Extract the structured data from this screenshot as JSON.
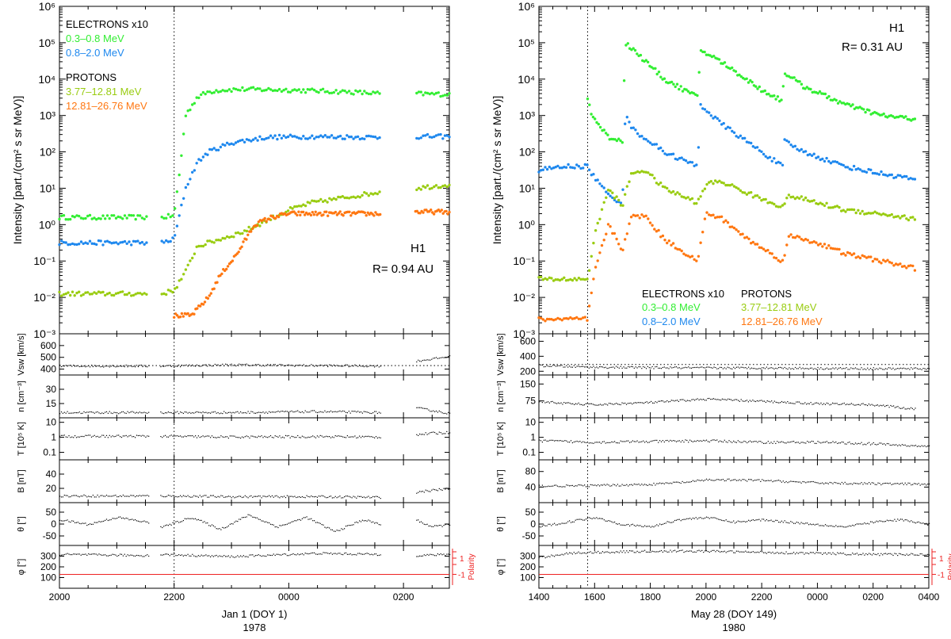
{
  "colors": {
    "e_low": "#33ee33",
    "e_high": "#1e88ee",
    "p_low": "#99cc11",
    "p_high": "#ff7711",
    "polarity": "#ee2222",
    "ink": "#000000"
  },
  "chart_data": [
    {
      "type": "scatter",
      "title": "",
      "spacecraft": "H1",
      "distance": "R= 0.94 AU",
      "xlabel": "Jan 1 (DOY 1)",
      "year": "1978",
      "x_ticks": [
        "2000",
        "2200",
        "0000",
        "0200"
      ],
      "x_range_hours": [
        0,
        6.8
      ],
      "event_hour": 2.0,
      "data_gaps": [
        [
          1.55,
          1.75
        ],
        [
          5.6,
          6.2
        ]
      ],
      "ylabel": "Intensity [part./(cm² s sr MeV)]",
      "y_ticks": [
        "10⁶",
        "10⁵",
        "10⁴",
        "10³",
        "10²",
        "10¹",
        "10⁰",
        "10⁻¹",
        "10⁻²",
        "10⁻³"
      ],
      "ylim_log10": [
        -3,
        6
      ],
      "legend": {
        "electrons_header": "ELECTRONS x10",
        "protons_header": "PROTONS",
        "placement": "top-left"
      },
      "series": [
        {
          "name": "0.3–0.8 MeV",
          "color_key": "e_low",
          "x": [
            0,
            1.5,
            1.8,
            2.0,
            2.1,
            2.2,
            2.4,
            2.6,
            2.8,
            3.2,
            4.0,
            5.0,
            5.6,
            6.2,
            6.8
          ],
          "y_log": [
            0.2,
            0.2,
            0.2,
            0.25,
            1.5,
            3.0,
            3.5,
            3.65,
            3.7,
            3.72,
            3.7,
            3.65,
            3.6,
            3.6,
            3.58
          ]
        },
        {
          "name": "0.8–2.0 MeV",
          "color_key": "e_high",
          "x": [
            0,
            1.5,
            1.8,
            2.0,
            2.1,
            2.2,
            2.4,
            2.6,
            3.0,
            3.6,
            4.4,
            5.6,
            6.2,
            6.8
          ],
          "y_log": [
            -0.5,
            -0.5,
            -0.5,
            -0.4,
            0.3,
            1.0,
            1.7,
            2.0,
            2.25,
            2.4,
            2.42,
            2.4,
            2.42,
            2.42
          ]
        },
        {
          "name": "3.77–12.81 MeV",
          "color_key": "p_low",
          "x": [
            0,
            1.5,
            1.8,
            2.0,
            2.2,
            2.4,
            2.8,
            3.2,
            3.6,
            4.0,
            4.4,
            5.0,
            5.6,
            6.2,
            6.8
          ],
          "y_log": [
            -1.9,
            -1.9,
            -1.9,
            -1.8,
            -1.3,
            -0.6,
            -0.4,
            -0.2,
            0.1,
            0.4,
            0.6,
            0.75,
            0.9,
            1.0,
            1.1
          ]
        },
        {
          "name": "12.81–26.76 MeV",
          "color_key": "p_high",
          "x": [
            2.0,
            2.3,
            2.6,
            2.8,
            3.1,
            3.4,
            3.7,
            4.0,
            4.4,
            5.0,
            5.6,
            6.2,
            6.8
          ],
          "y_log": [
            -2.5,
            -2.5,
            -2.0,
            -1.4,
            -0.8,
            0.0,
            0.2,
            0.3,
            0.3,
            0.3,
            0.3,
            0.35,
            0.35
          ]
        }
      ],
      "panels": [
        {
          "label": "Vsw [km/s]",
          "ticks": [
            "400",
            "500",
            "600"
          ],
          "range": [
            350,
            700
          ],
          "x": [
            0,
            1.5,
            1.8,
            3.0,
            4.2,
            5.6,
            6.2,
            6.5,
            6.8
          ],
          "y": [
            430,
            430,
            430,
            440,
            435,
            430,
            470,
            490,
            510
          ],
          "ref": 430
        },
        {
          "label": "n [cm⁻³]",
          "ticks": [
            "15",
            "30"
          ],
          "range": [
            0,
            45
          ],
          "x": [
            0,
            1.5,
            1.8,
            3.0,
            4.5,
            5.6,
            6.2,
            6.5,
            6.8
          ],
          "y": [
            6,
            6,
            6,
            6,
            7,
            6,
            11,
            8,
            5
          ]
        },
        {
          "label": "T [10⁵ K]",
          "ticks": [
            "0.1",
            "1",
            "10"
          ],
          "range_log": [
            -1.5,
            1.3
          ],
          "x": [
            0,
            1.5,
            1.8,
            3.0,
            4.5,
            5.6,
            6.2,
            6.5,
            6.8
          ],
          "y_log": [
            0.1,
            0.1,
            0.1,
            0.05,
            0.08,
            0.05,
            0.2,
            0.3,
            0.35
          ]
        },
        {
          "label": "B [nT]",
          "ticks": [
            "20",
            "40"
          ],
          "range": [
            0,
            60
          ],
          "x": [
            0,
            1.5,
            1.8,
            3.0,
            4.5,
            5.6,
            6.2,
            6.5,
            6.8
          ],
          "y": [
            10,
            10,
            10,
            9,
            9,
            8,
            15,
            18,
            20
          ]
        },
        {
          "label": "θ [°]",
          "ticks": [
            "-50",
            "0",
            "50"
          ],
          "range": [
            -90,
            90
          ],
          "x": [
            0,
            0.5,
            1.0,
            1.5,
            1.8,
            2.3,
            2.8,
            3.3,
            3.8,
            4.3,
            4.8,
            5.3,
            5.6,
            6.2,
            6.5,
            6.8
          ],
          "y": [
            20,
            0,
            30,
            10,
            -10,
            30,
            -20,
            40,
            -10,
            30,
            -30,
            20,
            0,
            20,
            -10,
            0
          ]
        },
        {
          "label": "φ [°]",
          "ticks": [
            "100",
            "200",
            "300"
          ],
          "range": [
            0,
            400
          ],
          "x": [
            0,
            1.5,
            1.8,
            3.0,
            4.5,
            5.6,
            6.2,
            6.8
          ],
          "y": [
            320,
            310,
            320,
            300,
            330,
            320,
            310,
            320
          ],
          "polarity_value": 130,
          "polarity_label": "Polarity",
          "polarity_ticks": [
            "1",
            "-1"
          ]
        }
      ]
    },
    {
      "type": "scatter",
      "title": "",
      "spacecraft": "H1",
      "distance": "R= 0.31 AU",
      "xlabel": "May 28 (DOY 149)",
      "year": "1980",
      "x_ticks": [
        "1400",
        "1600",
        "1800",
        "2000",
        "2200",
        "0000",
        "0200",
        "0400"
      ],
      "x_range_hours": [
        0,
        14
      ],
      "event_hour": 1.75,
      "data_gaps": [],
      "ylabel": "Intensity [part./(cm² s sr MeV)]",
      "y_ticks": [
        "10⁶",
        "10⁵",
        "10⁴",
        "10³",
        "10²",
        "10¹",
        "10⁰",
        "10⁻¹",
        "10⁻²",
        "10⁻³"
      ],
      "ylim_log10": [
        -3,
        6
      ],
      "legend": {
        "electrons_header": "ELECTRONS x10",
        "protons_header": "PROTONS",
        "placement": "bottom-right"
      },
      "series": [
        {
          "name": "0.3–0.8 MeV",
          "color_key": "e_low",
          "x": [
            1.75,
            1.9,
            2.5,
            3.0,
            3.1,
            3.4,
            4.5,
            5.7,
            5.8,
            6.5,
            8.0,
            8.75,
            8.8,
            9.5,
            11.0,
            12.3,
            13.5
          ],
          "y_log": [
            3.5,
            3.0,
            2.4,
            2.3,
            5.0,
            4.8,
            4.0,
            3.5,
            4.8,
            4.5,
            3.7,
            3.4,
            4.2,
            3.8,
            3.3,
            3.0,
            2.9
          ]
        },
        {
          "name": "0.8–2.0 MeV",
          "color_key": "e_high",
          "x": [
            0,
            1.0,
            1.75,
            1.9,
            2.5,
            3.0,
            3.1,
            3.4,
            4.5,
            5.7,
            5.8,
            6.5,
            8.0,
            8.75,
            8.8,
            9.5,
            11.0,
            12.3,
            13.5
          ],
          "y_log": [
            1.5,
            1.6,
            1.6,
            1.4,
            0.8,
            0.6,
            3.0,
            2.6,
            2.0,
            1.6,
            3.3,
            2.8,
            2.0,
            1.6,
            2.3,
            2.0,
            1.6,
            1.4,
            1.25
          ]
        },
        {
          "name": "3.77–12.81 MeV",
          "color_key": "p_low",
          "x": [
            0,
            1.0,
            1.75,
            2.0,
            2.5,
            3.0,
            3.3,
            3.8,
            4.5,
            5.7,
            6.0,
            6.5,
            8.0,
            8.75,
            9.0,
            10.0,
            11.0,
            12.3,
            13.5
          ],
          "y_log": [
            -1.5,
            -1.5,
            -1.5,
            -0.3,
            1.0,
            0.5,
            1.4,
            1.5,
            1.0,
            0.6,
            1.1,
            1.2,
            0.7,
            0.5,
            0.8,
            0.6,
            0.4,
            0.3,
            0.15
          ]
        },
        {
          "name": "12.81–26.76 MeV",
          "color_key": "p_high",
          "x": [
            0,
            1.0,
            1.75,
            2.0,
            2.5,
            3.0,
            3.3,
            3.8,
            4.5,
            5.7,
            6.0,
            6.5,
            7.5,
            8.75,
            9.0,
            10.0,
            11.0,
            12.3,
            13.5
          ],
          "y_log": [
            -2.6,
            -2.6,
            -2.6,
            -1.3,
            0.0,
            -0.7,
            0.2,
            0.25,
            -0.4,
            -1.0,
            0.3,
            0.2,
            -0.4,
            -1.0,
            -0.3,
            -0.5,
            -0.8,
            -1.0,
            -1.2
          ]
        }
      ],
      "panels": [
        {
          "label": "Vsw [km/s]",
          "ticks": [
            "200",
            "400",
            "600"
          ],
          "range": [
            150,
            700
          ],
          "x": [
            0,
            1.0,
            2.0,
            4.0,
            6.0,
            8.0,
            10.0,
            12.0,
            14.0
          ],
          "y": [
            280,
            270,
            260,
            255,
            250,
            250,
            245,
            240,
            240
          ],
          "ref": 290
        },
        {
          "label": "n [cm⁻³]",
          "ticks": [
            "75",
            "150"
          ],
          "range": [
            0,
            190
          ],
          "x": [
            0,
            1.0,
            2.0,
            4.0,
            6.0,
            8.0,
            10.0,
            12.0,
            13.5
          ],
          "y": [
            75,
            65,
            60,
            70,
            85,
            75,
            65,
            60,
            40
          ]
        },
        {
          "label": "T [10⁵ K]",
          "ticks": [
            "0.1",
            "1",
            "10"
          ],
          "range_log": [
            -1.5,
            1.3
          ],
          "x": [
            0,
            1.0,
            2.0,
            4.0,
            6.0,
            8.0,
            10.0,
            12.0,
            14.0
          ],
          "y_log": [
            -0.2,
            -0.25,
            -0.3,
            -0.25,
            -0.2,
            -0.3,
            -0.3,
            -0.4,
            -0.6
          ]
        },
        {
          "label": "B [nT]",
          "ticks": [
            "40",
            "80"
          ],
          "range": [
            0,
            110
          ],
          "x": [
            0,
            1.0,
            2.0,
            4.0,
            5.5,
            6.0,
            8.0,
            10.0,
            12.0,
            14.0
          ],
          "y": [
            44,
            44,
            45,
            48,
            55,
            60,
            58,
            52,
            50,
            48
          ]
        },
        {
          "label": "θ [°]",
          "ticks": [
            "-50",
            "0",
            "50"
          ],
          "range": [
            -90,
            90
          ],
          "x": [
            0,
            1.0,
            2.0,
            3.0,
            4.0,
            5.0,
            6.0,
            7.0,
            8.0,
            9.0,
            10.0,
            11.0,
            12.0,
            13.0,
            14.0
          ],
          "y": [
            -10,
            10,
            30,
            0,
            -10,
            20,
            30,
            10,
            20,
            10,
            0,
            -10,
            10,
            20,
            0
          ]
        },
        {
          "label": "φ [°]",
          "ticks": [
            "100",
            "200",
            "300"
          ],
          "range": [
            0,
            400
          ],
          "x": [
            0,
            1.0,
            2.0,
            4.0,
            6.0,
            8.0,
            10.0,
            12.0,
            14.0
          ],
          "y": [
            290,
            330,
            340,
            350,
            350,
            340,
            330,
            320,
            320
          ],
          "polarity_value": 130,
          "polarity_label": "Polarity",
          "polarity_ticks": [
            "1",
            "-1"
          ]
        }
      ]
    }
  ]
}
